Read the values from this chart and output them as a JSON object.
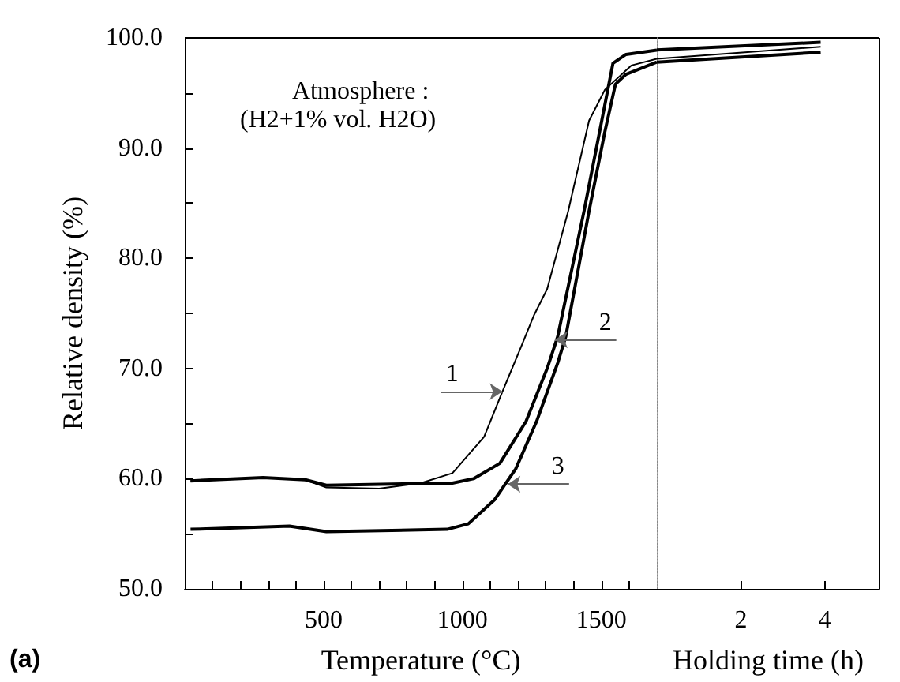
{
  "chart_data": [
    {
      "type": "line",
      "xlabel": "Temperature (°C)",
      "ylabel": "Relative density (%)",
      "xlim": [
        0,
        1700
      ],
      "ylim": [
        50,
        100
      ],
      "xticks": [
        {
          "value": 100,
          "label": null
        },
        {
          "value": 200,
          "label": null
        },
        {
          "value": 300,
          "label": null
        },
        {
          "value": 400,
          "label": null
        },
        500,
        {
          "value": 600,
          "label": null
        },
        {
          "value": 700,
          "label": null
        },
        {
          "value": 800,
          "label": null
        },
        {
          "value": 900,
          "label": null
        },
        1000,
        {
          "value": 1100,
          "label": null
        },
        {
          "value": 1200,
          "label": null
        },
        {
          "value": 1300,
          "label": null
        },
        {
          "value": 1400,
          "label": null
        },
        1500,
        {
          "value": 1600,
          "label": null
        }
      ],
      "yticks": [
        {
          "value": 50,
          "label": "50.0"
        },
        {
          "value": 55,
          "label": null
        },
        {
          "value": 60,
          "label": "60.0"
        },
        {
          "value": 65,
          "label": null
        },
        {
          "value": 70,
          "label": "70.0"
        },
        {
          "value": 75,
          "label": null
        },
        {
          "value": 80,
          "label": "80.0"
        },
        {
          "value": 85,
          "label": null
        },
        {
          "value": 90,
          "label": "90.0"
        },
        {
          "value": 95,
          "label": null
        },
        {
          "value": 100,
          "label": "100.0"
        }
      ],
      "series": [
        {
          "color": "#000000",
          "x": [
            21,
            282,
            434,
            510,
            700,
            850,
            964,
            1078,
            1144,
            1210,
            1257,
            1305,
            1381,
            1456,
            1513,
            1608,
            1700
          ],
          "values": [
            59.8,
            60.1,
            59.9,
            59.2,
            59.1,
            59.6,
            60.5,
            63.8,
            67.9,
            71.9,
            74.8,
            77.2,
            84.3,
            92.5,
            95.3,
            97.5,
            98.1
          ]
        },
        {
          "color": "#000000",
          "x": [
            21,
            282,
            434,
            510,
            964,
            1040,
            1135,
            1229,
            1305,
            1343,
            1438,
            1494,
            1542,
            1589,
            1700
          ],
          "values": [
            59.8,
            60.1,
            59.9,
            59.4,
            59.6,
            60.0,
            61.4,
            65.2,
            70.0,
            72.9,
            84.3,
            91.5,
            97.7,
            98.5,
            98.9
          ]
        },
        {
          "color": "#000000",
          "x": [
            21,
            377,
            510,
            945,
            1021,
            1116,
            1192,
            1267,
            1343,
            1372,
            1456,
            1513,
            1551,
            1589,
            1700
          ],
          "values": [
            55.4,
            55.7,
            55.2,
            55.4,
            55.9,
            58.1,
            60.9,
            65.2,
            70.5,
            72.9,
            84.3,
            91.5,
            95.8,
            96.7,
            97.8
          ]
        }
      ],
      "annotations": [
        "Atmosphere :",
        "(H2+1% vol. H2O)",
        "(a)",
        {
          "text": "1",
          "x": 1144,
          "y": 67.9
        },
        {
          "text": "2",
          "x": 1333,
          "y": 72.6
        },
        {
          "text": "3",
          "x": 1163,
          "y": 59.5
        }
      ],
      "marker": "none",
      "line_style": "solid",
      "grid": false
    },
    {
      "type": "line",
      "xlabel": "Holding time (h)",
      "xlim": [
        0,
        5.3
      ],
      "ylim": [
        50,
        100
      ],
      "xticks": [
        2,
        4
      ],
      "tick_labels": "x",
      "series": [
        {
          "color": "#000000",
          "x": [
            0,
            3.9
          ],
          "values": [
            98.1,
            99.2
          ]
        },
        {
          "color": "#000000",
          "x": [
            0,
            3.9
          ],
          "values": [
            98.9,
            99.6
          ]
        },
        {
          "color": "#000000",
          "x": [
            0,
            3.9
          ],
          "values": [
            97.8,
            98.7
          ]
        }
      ],
      "marker": "none",
      "line_style": "solid",
      "grid": false
    }
  ]
}
